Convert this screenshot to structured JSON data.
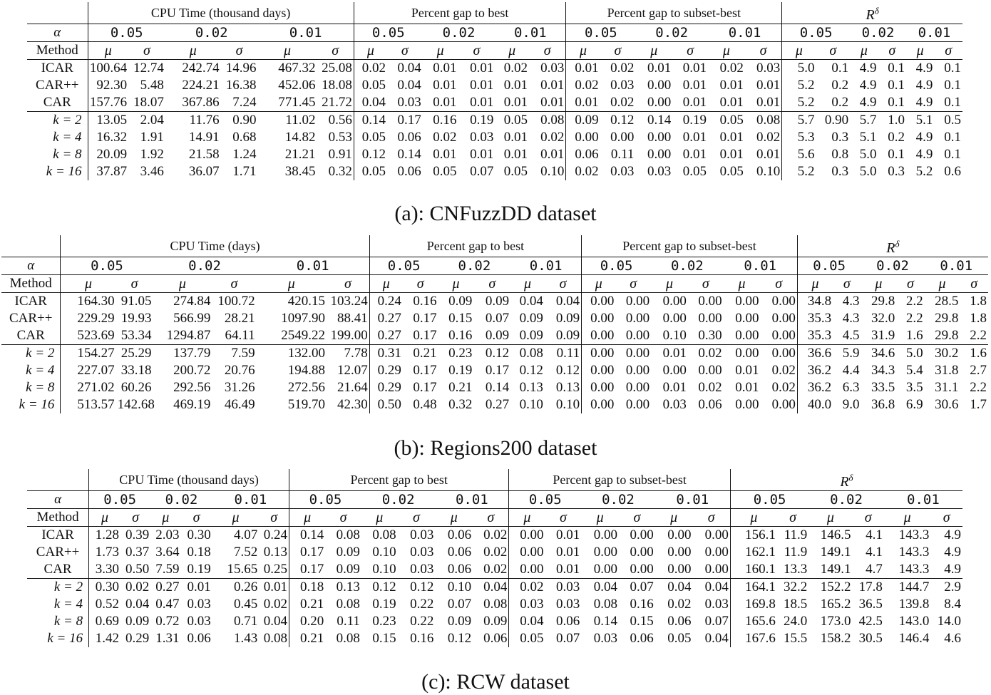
{
  "tables": [
    {
      "caption": "(a): CNFuzzDD dataset",
      "groups": [
        "CPU Time (thousand days)",
        "Percent gap to best",
        "Percent gap to subset-best",
        "R^δ"
      ],
      "alphas": [
        "0.05",
        "0.02",
        "0.01"
      ],
      "method_header": "Method",
      "alpha_header": "α",
      "mu": "μ",
      "sigma": "σ",
      "rows": [
        {
          "label": "ICAR",
          "cells": [
            "100.64",
            "12.74",
            "242.74",
            "14.96",
            "467.32",
            "25.08",
            "0.02",
            "0.04",
            "0.01",
            "0.01",
            "0.02",
            "0.03",
            "0.01",
            "0.02",
            "0.01",
            "0.01",
            "0.02",
            "0.03",
            "5.0",
            "0.1",
            "4.9",
            "0.1",
            "4.9",
            "0.1"
          ]
        },
        {
          "label": "CAR++",
          "cells": [
            "92.30",
            "5.48",
            "224.21",
            "16.38",
            "452.06",
            "18.08",
            "0.05",
            "0.04",
            "0.01",
            "0.01",
            "0.01",
            "0.01",
            "0.02",
            "0.03",
            "0.00",
            "0.01",
            "0.01",
            "0.01",
            "5.2",
            "0.2",
            "4.9",
            "0.1",
            "4.9",
            "0.1"
          ]
        },
        {
          "label": "CAR",
          "cells": [
            "157.76",
            "18.07",
            "367.86",
            "7.24",
            "771.45",
            "21.72",
            "0.04",
            "0.03",
            "0.01",
            "0.01",
            "0.01",
            "0.01",
            "0.01",
            "0.02",
            "0.00",
            "0.01",
            "0.01",
            "0.01",
            "5.2",
            "0.2",
            "4.9",
            "0.1",
            "4.9",
            "0.1"
          ]
        },
        {
          "label": "k = 2",
          "cells": [
            "13.05",
            "2.04",
            "11.76",
            "0.90",
            "11.02",
            "0.56",
            "0.14",
            "0.17",
            "0.16",
            "0.19",
            "0.05",
            "0.08",
            "0.09",
            "0.12",
            "0.14",
            "0.19",
            "0.05",
            "0.08",
            "5.7",
            "0.90",
            "5.7",
            "1.0",
            "5.1",
            "0.5"
          ]
        },
        {
          "label": "k = 4",
          "cells": [
            "16.32",
            "1.91",
            "14.91",
            "0.68",
            "14.82",
            "0.53",
            "0.05",
            "0.06",
            "0.02",
            "0.03",
            "0.01",
            "0.02",
            "0.00",
            "0.00",
            "0.00",
            "0.01",
            "0.01",
            "0.02",
            "5.3",
            "0.3",
            "5.1",
            "0.2",
            "4.9",
            "0.1"
          ]
        },
        {
          "label": "k = 8",
          "cells": [
            "20.09",
            "1.92",
            "21.58",
            "1.24",
            "21.21",
            "0.91",
            "0.12",
            "0.14",
            "0.01",
            "0.01",
            "0.01",
            "0.01",
            "0.06",
            "0.11",
            "0.00",
            "0.01",
            "0.01",
            "0.01",
            "5.6",
            "0.8",
            "5.0",
            "0.1",
            "4.9",
            "0.1"
          ]
        },
        {
          "label": "k = 16",
          "cells": [
            "37.87",
            "3.46",
            "36.07",
            "1.71",
            "38.45",
            "0.32",
            "0.05",
            "0.06",
            "0.05",
            "0.07",
            "0.05",
            "0.10",
            "0.02",
            "0.03",
            "0.03",
            "0.05",
            "0.05",
            "0.10",
            "5.2",
            "0.3",
            "5.0",
            "0.3",
            "5.2",
            "0.6"
          ]
        }
      ]
    },
    {
      "caption": "(b): Regions200 dataset",
      "groups": [
        "CPU Time (days)",
        "Percent gap to best",
        "Percent gap to subset-best",
        "R^δ"
      ],
      "alphas": [
        "0.05",
        "0.02",
        "0.01"
      ],
      "method_header": "Method",
      "alpha_header": "α",
      "mu": "μ",
      "sigma": "σ",
      "rows": [
        {
          "label": "ICAR",
          "cells": [
            "164.30",
            "91.05",
            "274.84",
            "100.72",
            "420.15",
            "103.24",
            "0.24",
            "0.16",
            "0.09",
            "0.09",
            "0.04",
            "0.04",
            "0.00",
            "0.00",
            "0.00",
            "0.00",
            "0.00",
            "0.00",
            "34.8",
            "4.3",
            "29.8",
            "2.2",
            "28.5",
            "1.8"
          ]
        },
        {
          "label": "CAR++",
          "cells": [
            "229.29",
            "19.93",
            "566.99",
            "28.21",
            "1097.90",
            "88.41",
            "0.27",
            "0.17",
            "0.15",
            "0.07",
            "0.09",
            "0.09",
            "0.00",
            "0.00",
            "0.00",
            "0.00",
            "0.00",
            "0.00",
            "35.3",
            "4.3",
            "32.0",
            "2.2",
            "29.8",
            "1.8"
          ]
        },
        {
          "label": "CAR",
          "cells": [
            "523.69",
            "53.34",
            "1294.87",
            "64.11",
            "2549.22",
            "199.00",
            "0.27",
            "0.17",
            "0.16",
            "0.09",
            "0.09",
            "0.09",
            "0.00",
            "0.00",
            "0.10",
            "0.30",
            "0.00",
            "0.00",
            "35.3",
            "4.5",
            "31.9",
            "1.6",
            "29.8",
            "2.2"
          ]
        },
        {
          "label": "k = 2",
          "cells": [
            "154.27",
            "25.29",
            "137.79",
            "7.59",
            "132.00",
            "7.78",
            "0.31",
            "0.21",
            "0.23",
            "0.12",
            "0.08",
            "0.11",
            "0.00",
            "0.00",
            "0.01",
            "0.02",
            "0.00",
            "0.00",
            "36.6",
            "5.9",
            "34.6",
            "5.0",
            "30.2",
            "1.6"
          ]
        },
        {
          "label": "k = 4",
          "cells": [
            "227.07",
            "33.18",
            "200.72",
            "20.76",
            "194.88",
            "12.07",
            "0.29",
            "0.17",
            "0.19",
            "0.17",
            "0.12",
            "0.12",
            "0.00",
            "0.00",
            "0.00",
            "0.00",
            "0.01",
            "0.02",
            "36.2",
            "4.4",
            "34.3",
            "5.4",
            "31.8",
            "2.7"
          ]
        },
        {
          "label": "k = 8",
          "cells": [
            "271.02",
            "60.26",
            "292.56",
            "31.26",
            "272.56",
            "21.64",
            "0.29",
            "0.17",
            "0.21",
            "0.14",
            "0.13",
            "0.13",
            "0.00",
            "0.00",
            "0.01",
            "0.02",
            "0.01",
            "0.02",
            "36.2",
            "6.3",
            "33.5",
            "3.5",
            "31.1",
            "2.2"
          ]
        },
        {
          "label": "k = 16",
          "cells": [
            "513.57",
            "142.68",
            "469.19",
            "46.49",
            "519.70",
            "42.30",
            "0.50",
            "0.48",
            "0.32",
            "0.27",
            "0.10",
            "0.10",
            "0.00",
            "0.00",
            "0.03",
            "0.06",
            "0.00",
            "0.00",
            "40.0",
            "9.0",
            "36.8",
            "6.9",
            "30.6",
            "1.7"
          ]
        }
      ]
    },
    {
      "caption": "(c): RCW dataset",
      "groups": [
        "CPU Time (thousand days)",
        "Percent gap to best",
        "Percent gap to subset-best",
        "R^δ"
      ],
      "alphas": [
        "0.05",
        "0.02",
        "0.01"
      ],
      "method_header": "Method",
      "alpha_header": "α",
      "mu": "μ",
      "sigma": "σ",
      "rows": [
        {
          "label": "ICAR",
          "cells": [
            "1.28",
            "0.39",
            "2.03",
            "0.30",
            "4.07",
            "0.24",
            "0.14",
            "0.08",
            "0.08",
            "0.03",
            "0.06",
            "0.02",
            "0.00",
            "0.01",
            "0.00",
            "0.00",
            "0.00",
            "0.00",
            "156.1",
            "11.9",
            "146.5",
            "4.1",
            "143.3",
            "4.9"
          ]
        },
        {
          "label": "CAR++",
          "cells": [
            "1.73",
            "0.37",
            "3.64",
            "0.18",
            "7.52",
            "0.13",
            "0.17",
            "0.09",
            "0.10",
            "0.03",
            "0.06",
            "0.02",
            "0.00",
            "0.01",
            "0.00",
            "0.00",
            "0.00",
            "0.00",
            "162.1",
            "11.9",
            "149.1",
            "4.1",
            "143.3",
            "4.9"
          ]
        },
        {
          "label": "CAR",
          "cells": [
            "3.30",
            "0.50",
            "7.59",
            "0.19",
            "15.65",
            "0.25",
            "0.17",
            "0.09",
            "0.10",
            "0.03",
            "0.06",
            "0.02",
            "0.00",
            "0.01",
            "0.00",
            "0.00",
            "0.00",
            "0.00",
            "160.1",
            "13.3",
            "149.1",
            "4.7",
            "143.3",
            "4.9"
          ]
        },
        {
          "label": "k = 2",
          "cells": [
            "0.30",
            "0.02",
            "0.27",
            "0.01",
            "0.26",
            "0.01",
            "0.18",
            "0.13",
            "0.12",
            "0.12",
            "0.10",
            "0.04",
            "0.02",
            "0.03",
            "0.04",
            "0.07",
            "0.04",
            "0.04",
            "164.1",
            "32.2",
            "152.2",
            "17.8",
            "144.7",
            "2.9"
          ]
        },
        {
          "label": "k = 4",
          "cells": [
            "0.52",
            "0.04",
            "0.47",
            "0.03",
            "0.45",
            "0.02",
            "0.21",
            "0.08",
            "0.19",
            "0.22",
            "0.07",
            "0.08",
            "0.03",
            "0.03",
            "0.08",
            "0.16",
            "0.02",
            "0.03",
            "169.8",
            "18.5",
            "165.2",
            "36.5",
            "139.8",
            "8.4"
          ]
        },
        {
          "label": "k = 8",
          "cells": [
            "0.69",
            "0.09",
            "0.72",
            "0.03",
            "0.71",
            "0.04",
            "0.20",
            "0.11",
            "0.23",
            "0.22",
            "0.09",
            "0.09",
            "0.04",
            "0.06",
            "0.14",
            "0.15",
            "0.06",
            "0.07",
            "165.6",
            "24.0",
            "173.0",
            "42.5",
            "143.0",
            "14.0"
          ]
        },
        {
          "label": "k = 16",
          "cells": [
            "1.42",
            "0.29",
            "1.31",
            "0.06",
            "1.43",
            "0.08",
            "0.21",
            "0.08",
            "0.15",
            "0.16",
            "0.12",
            "0.06",
            "0.05",
            "0.07",
            "0.03",
            "0.06",
            "0.05",
            "0.04",
            "167.6",
            "15.5",
            "158.2",
            "30.5",
            "146.4",
            "4.6"
          ]
        }
      ]
    }
  ]
}
